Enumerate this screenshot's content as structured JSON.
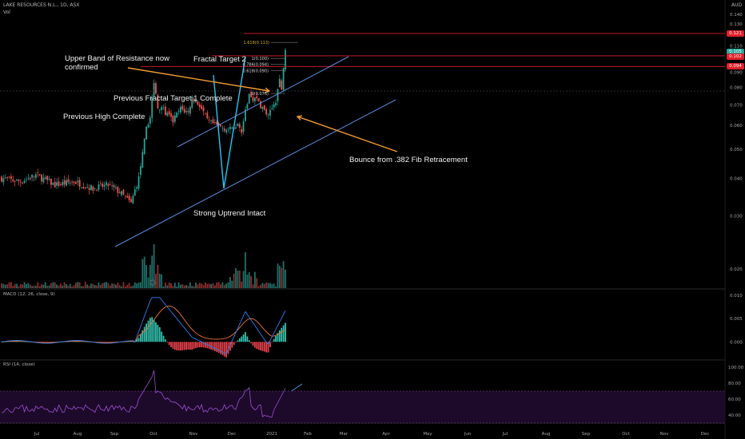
{
  "header": {
    "symbol_line": "LAKE RESOURCES N.L., 1D, ASX",
    "vol_label": "Vol",
    "currency": "AUD"
  },
  "colors": {
    "up": "#26a69a",
    "down": "#ef5350",
    "channel": "#5b8fe0",
    "fractal_line": "#29c5f6",
    "annotation_arrow": "#f39c34",
    "resistance": "#e0202a",
    "fib": "#d4b23a",
    "macd_line": "#2f7ff0",
    "signal_line": "#f0743a",
    "rsi_line": "#9c4fd3",
    "rsi_band_fill": "#1d0a2a"
  },
  "price_axis": {
    "ticks": [
      "0.140",
      "0.130",
      "0.120",
      "0.110",
      "0.100",
      "0.090",
      "0.080",
      "0.070",
      "0.060",
      "0.050",
      "0.040",
      "0.030",
      "0.020"
    ],
    "price_labels": [
      {
        "text": "0.121",
        "value": 0.121,
        "color": "#e0202a"
      },
      {
        "text": "0.105",
        "value": 0.105,
        "color": "#26a69a"
      },
      {
        "text": "0.102",
        "value": 0.1015,
        "color": "#e0202a"
      },
      {
        "text": "0.094",
        "value": 0.094,
        "color": "#e0202a"
      }
    ]
  },
  "time_axis": {
    "labels": [
      "Jul",
      "Aug",
      "Sep",
      "Oct",
      "Nov",
      "Dec",
      "2021",
      "Feb",
      "Mar",
      "Apr",
      "May",
      "Jun",
      "Jul",
      "Aug",
      "Sep",
      "Oct",
      "Nov",
      "Dec"
    ]
  },
  "macd": {
    "title": "MACD (12, 26, close, 9)",
    "ticks": [
      "0.010",
      "0.005",
      "0.000"
    ]
  },
  "rsi": {
    "title": "RSI (14, close)",
    "ticks": [
      "100.00",
      "80.00",
      "60.00",
      "40.00"
    ]
  },
  "annotations": {
    "upper_band": "Upper Band of Resistance now",
    "upper_band_2": "confirmed",
    "fractal_target_2": "Fractal Target 2",
    "prev_fractal": "Previous Fractal Target 1 Complete",
    "prev_high": "Previous High Complete",
    "bounce": "Bounce from .382 Fib Retracement",
    "uptrend": "Strong Uptrend Intact"
  },
  "fib_labels": [
    {
      "text": "1.618(0.113)",
      "value": 0.113
    },
    {
      "text": "1(0.100)",
      "value": 0.1
    },
    {
      "text": "0.786(0.094)",
      "value": 0.0955
    },
    {
      "text": "0.618(0.090)",
      "value": 0.091
    },
    {
      "text": "0(0.076)",
      "value": 0.0765
    }
  ],
  "chart_data": {
    "type": "candlestick",
    "title": "LAKE RESOURCES N.L., 1D, ASX",
    "ylabel": "AUD",
    "ylim": [
      0.02,
      0.145
    ],
    "yscale": "log",
    "x_range": [
      "Jun 2020",
      "Dec 2021"
    ],
    "grid": false,
    "closes_approx": [
      {
        "date": "2020-06-22",
        "close": 0.04
      },
      {
        "date": "2020-07-15",
        "close": 0.039
      },
      {
        "date": "2020-08-10",
        "close": 0.038
      },
      {
        "date": "2020-09-04",
        "close": 0.035
      },
      {
        "date": "2020-09-14",
        "close": 0.042
      },
      {
        "date": "2020-09-22",
        "close": 0.06
      },
      {
        "date": "2020-09-24",
        "close": 0.082
      },
      {
        "date": "2020-10-01",
        "close": 0.065
      },
      {
        "date": "2020-10-20",
        "close": 0.075
      },
      {
        "date": "2020-11-02",
        "close": 0.063
      },
      {
        "date": "2020-11-20",
        "close": 0.059
      },
      {
        "date": "2020-12-04",
        "close": 0.076
      },
      {
        "date": "2020-12-11",
        "close": 0.074
      },
      {
        "date": "2020-12-24",
        "close": 0.068
      },
      {
        "date": "2021-01-05",
        "close": 0.074
      },
      {
        "date": "2021-01-11",
        "close": 0.079
      },
      {
        "date": "2021-01-14",
        "close": 0.094
      },
      {
        "date": "2021-01-15",
        "close": 0.105
      }
    ],
    "resistance_levels": [
      0.121,
      0.102,
      0.094
    ],
    "fibonacci": [
      {
        "level": "0",
        "price": 0.076
      },
      {
        "level": "0.618",
        "price": 0.09
      },
      {
        "level": "0.786",
        "price": 0.094
      },
      {
        "level": "1",
        "price": 0.1
      },
      {
        "level": "1.618",
        "price": 0.113
      }
    ],
    "macd": {
      "ylim": [
        -0.002,
        0.01
      ],
      "last_macd": 0.0065,
      "last_signal": 0.0035
    },
    "rsi": {
      "ylim": [
        30,
        100
      ],
      "bands": [
        70,
        30
      ],
      "last": 72
    }
  }
}
